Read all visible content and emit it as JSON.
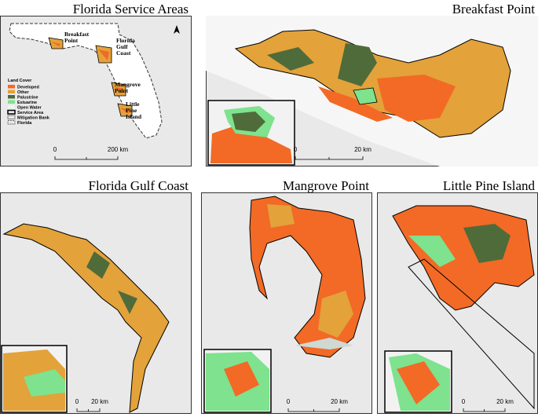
{
  "panels": [
    {
      "title": "Florida Service Areas",
      "labels": [
        [
          "Breakfast",
          "Point"
        ],
        [
          "Florida",
          "Gulf",
          "Coast"
        ],
        [
          "Mangrove",
          "Point"
        ],
        [
          "Little",
          "Pine",
          "Island"
        ]
      ],
      "scale": [
        "0",
        "200 km"
      ]
    },
    {
      "title": "Breakfast Point",
      "scale": [
        "0",
        "20 km"
      ]
    },
    {
      "title": "Florida Gulf Coast",
      "scale": [
        "0",
        "20 km"
      ]
    },
    {
      "title": "Mangrove Point",
      "scale": [
        "0",
        "20 km"
      ]
    },
    {
      "title": "Little Pine Island",
      "scale": [
        "0",
        "20 km"
      ]
    }
  ],
  "legend": {
    "title": "Land Cover",
    "items": [
      {
        "label": "Developed",
        "color": "#f26a25"
      },
      {
        "label": "Other",
        "color": "#e3a23a"
      },
      {
        "label": "Palustrine",
        "color": "#4f6b3a"
      },
      {
        "label": "Estuarine",
        "color": "#7ee28e"
      },
      {
        "label": "Open Water",
        "color": "#eef5f1"
      },
      {
        "label": "Service Area",
        "color": "#000000"
      },
      {
        "label": "Mitigation Bank",
        "color": "#555555"
      },
      {
        "label": "Florida",
        "color": "#333333"
      }
    ]
  }
}
